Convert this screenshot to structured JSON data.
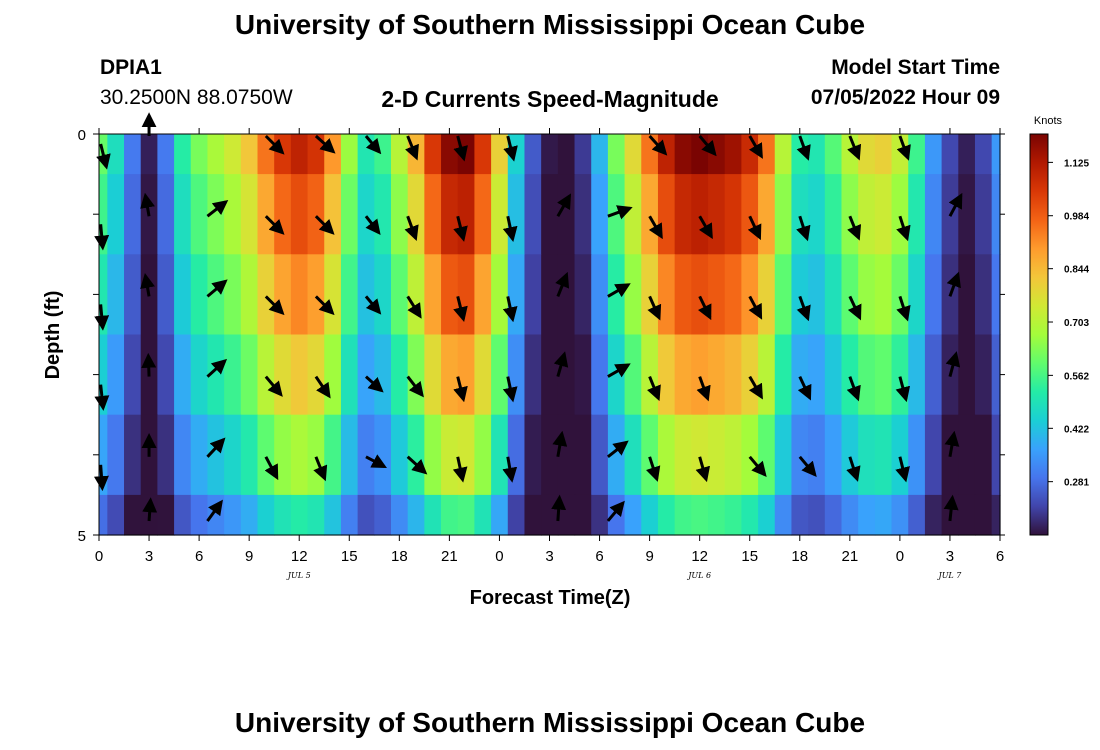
{
  "header": {
    "title": "University of Southern Mississippi Ocean Cube",
    "station": "DPIA1",
    "location": "30.2500N  88.0750W",
    "subtitle": "2-D Currents Speed-Magnitude",
    "model_label": "Model Start Time",
    "model_time": "07/05/2022 Hour 09"
  },
  "footer": {
    "title": "University of Southern Mississippi Ocean Cube"
  },
  "chart_data": {
    "type": "heatmap",
    "title": "2-D Currents Speed-Magnitude",
    "xlabel": "Forecast Time(Z)",
    "ylabel": "Depth (ft)",
    "x_tick_labels": [
      "0",
      "3",
      "6",
      "9",
      "12",
      "15",
      "18",
      "21",
      "0",
      "3",
      "6",
      "9",
      "12",
      "15",
      "18",
      "21",
      "0",
      "3",
      "6"
    ],
    "x_range_hours": [
      0,
      54
    ],
    "y_tick_labels": [
      "0",
      "5"
    ],
    "y_range": [
      0,
      5
    ],
    "date_labels": [
      {
        "text": "JUL 5",
        "hour": 12
      },
      {
        "text": "JUL 6",
        "hour": 36
      },
      {
        "text": "JUL 7",
        "hour": 51
      }
    ],
    "colorbar": {
      "unit": "Knots",
      "range": [
        0.14,
        1.2
      ],
      "tick_values": [
        "1.125",
        "0.984",
        "0.844",
        "0.703",
        "0.562",
        "0.422",
        "0.281"
      ],
      "colors": [
        "#30123b",
        "#4145ab",
        "#4675ed",
        "#39a2fc",
        "#1bcfd4",
        "#24eca6",
        "#61fc6c",
        "#a4fc3b",
        "#d1e834",
        "#f3c63a",
        "#fe9b2d",
        "#f36315",
        "#d93806",
        "#b11901",
        "#7a0402"
      ]
    },
    "hours": [
      0,
      1,
      2,
      3,
      4,
      5,
      6,
      7,
      8,
      9,
      10,
      11,
      12,
      13,
      14,
      15,
      16,
      17,
      18,
      19,
      20,
      21,
      22,
      23,
      24,
      25,
      26,
      27,
      28,
      29,
      30,
      31,
      32,
      33,
      34,
      35,
      36,
      37,
      38,
      39,
      40,
      41,
      42,
      43,
      44,
      45,
      46,
      47,
      48,
      49,
      50,
      51,
      52,
      53,
      54
    ],
    "depth_layers_ft": [
      0,
      1,
      2,
      3,
      4,
      5
    ],
    "speed_profile_knots": [
      0.6,
      0.48,
      0.3,
      0.16,
      0.3,
      0.52,
      0.62,
      0.68,
      0.74,
      0.82,
      0.95,
      1.05,
      1.1,
      1.06,
      0.9,
      0.66,
      0.5,
      0.55,
      0.7,
      0.85,
      1.05,
      1.18,
      1.2,
      1.05,
      0.8,
      0.45,
      0.25,
      0.15,
      0.12,
      0.2,
      0.4,
      0.62,
      0.78,
      0.95,
      1.1,
      1.18,
      1.2,
      1.18,
      1.15,
      1.08,
      0.95,
      0.7,
      0.52,
      0.5,
      0.58,
      0.7,
      0.78,
      0.8,
      0.72,
      0.55,
      0.35,
      0.22,
      0.16,
      0.22,
      0.35
    ],
    "depth_factors": [
      1.0,
      0.92,
      0.84,
      0.74,
      0.62,
      0.47
    ],
    "vectors": [
      {
        "hour": 0.1,
        "depth": [
          0.1,
          1.1,
          2.1,
          3.1,
          4.1
        ],
        "angle_deg": [
          76,
          85,
          85,
          84,
          86
        ],
        "len": 0.9
      },
      {
        "hour": 3,
        "depth": [
          0,
          1,
          2,
          3,
          4,
          4.8
        ],
        "angle_deg": [
          -90,
          -100,
          -100,
          -92,
          -90,
          -86
        ],
        "len": 0.8
      },
      {
        "hour": 6.5,
        "depth": [
          1,
          2,
          3,
          4,
          4.8
        ],
        "angle_deg": [
          -38,
          -40,
          -42,
          -47,
          -54
        ],
        "len": 0.9
      },
      {
        "hour": 10,
        "depth": [
          0,
          1,
          2,
          3,
          4
        ],
        "angle_deg": [
          45,
          45,
          45,
          50,
          62
        ],
        "len": 0.9
      },
      {
        "hour": 13,
        "depth": [
          0,
          1,
          2,
          3,
          4
        ],
        "angle_deg": [
          42,
          45,
          45,
          56,
          68
        ],
        "len": 0.9
      },
      {
        "hour": 16,
        "depth": [
          0,
          1,
          2,
          3,
          4
        ],
        "angle_deg": [
          50,
          52,
          50,
          42,
          28
        ],
        "len": 0.8
      },
      {
        "hour": 18.5,
        "depth": [
          0,
          1,
          2,
          3,
          4
        ],
        "angle_deg": [
          68,
          70,
          58,
          52,
          42
        ],
        "len": 0.9
      },
      {
        "hour": 21.5,
        "depth": [
          0,
          1,
          2,
          3,
          4
        ],
        "angle_deg": [
          75,
          76,
          76,
          76,
          78
        ],
        "len": 0.9
      },
      {
        "hour": 24.5,
        "depth": [
          0,
          1,
          2,
          3,
          4
        ],
        "angle_deg": [
          76,
          78,
          78,
          78,
          80
        ],
        "len": 0.9
      },
      {
        "hour": 27.5,
        "depth": [
          1,
          2,
          3,
          4,
          4.8
        ],
        "angle_deg": [
          -60,
          -68,
          -74,
          -80,
          -86
        ],
        "len": 0.9
      },
      {
        "hour": 30.5,
        "depth": [
          1,
          2,
          3,
          4,
          4.8
        ],
        "angle_deg": [
          -20,
          -30,
          -30,
          -38,
          -50
        ],
        "len": 0.9
      },
      {
        "hour": 33,
        "depth": [
          0,
          1,
          2,
          3,
          4
        ],
        "angle_deg": [
          48,
          60,
          66,
          68,
          72
        ],
        "len": 0.9
      },
      {
        "hour": 36,
        "depth": [
          0,
          1,
          2,
          3,
          4
        ],
        "angle_deg": [
          50,
          60,
          64,
          70,
          74
        ],
        "len": 0.9
      },
      {
        "hour": 39,
        "depth": [
          0,
          1,
          2,
          3,
          4
        ],
        "angle_deg": [
          60,
          65,
          62,
          60,
          50
        ],
        "len": 0.9
      },
      {
        "hour": 42,
        "depth": [
          0,
          1,
          2,
          3,
          4
        ],
        "angle_deg": [
          70,
          72,
          70,
          65,
          50
        ],
        "len": 0.9
      },
      {
        "hour": 45,
        "depth": [
          0,
          1,
          2,
          3,
          4
        ],
        "angle_deg": [
          68,
          68,
          65,
          70,
          72
        ],
        "len": 0.9
      },
      {
        "hour": 48,
        "depth": [
          0,
          1,
          2,
          3,
          4
        ],
        "angle_deg": [
          70,
          72,
          72,
          75,
          76
        ],
        "len": 0.9
      },
      {
        "hour": 51,
        "depth": [
          1,
          2,
          3,
          4,
          4.8
        ],
        "angle_deg": [
          -62,
          -70,
          -75,
          -80,
          -84
        ],
        "len": 0.9
      }
    ]
  }
}
